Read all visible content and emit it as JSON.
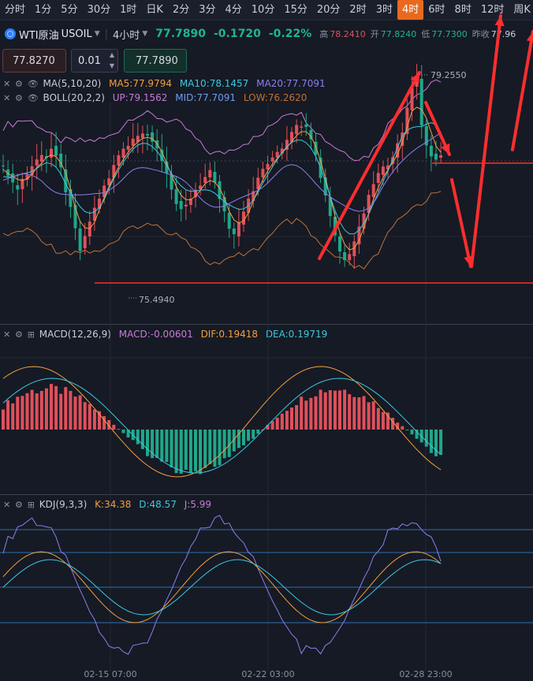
{
  "tabs": [
    "分时",
    "1分",
    "5分",
    "30分",
    "1时",
    "日K",
    "2分",
    "3分",
    "4分",
    "10分",
    "15分",
    "20分",
    "2时",
    "3时",
    "4时",
    "6时",
    "8时",
    "12时",
    "周K"
  ],
  "active_tab": "4时",
  "symbol": {
    "name": "WTI原油",
    "code": "USOIL",
    "period": "4小时",
    "price": "77.7890",
    "change": "-0.1720",
    "change_pct": "-0.22%",
    "high_label": "高",
    "high": "78.2410",
    "open_label": "开",
    "open": "77.8240",
    "low_label": "低",
    "low": "77.7300",
    "prev_label": "昨收",
    "prev": "77.96"
  },
  "order": {
    "sell_price": "77.8270",
    "quantity": "0.01",
    "buy_price": "77.7890"
  },
  "main_indicators": {
    "ma_label": "MA(5,10,20)",
    "ma5": "MA5:77.9794",
    "ma10": "MA10:78.1457",
    "ma20": "MA20:77.7091",
    "boll_label": "BOLL(20,2,2)",
    "up": "UP:79.1562",
    "mid": "MID:77.7091",
    "low": "LOW:76.2620"
  },
  "annotations": {
    "high_marker": "79.2550",
    "low_marker": "75.4940"
  },
  "macd": {
    "label": "MACD(12,26,9)",
    "macd": "MACD:-0.00601",
    "dif": "DIF:0.19418",
    "dea": "DEA:0.19719"
  },
  "kdj": {
    "label": "KDJ(9,3,3)",
    "k": "K:34.38",
    "d": "D:48.57",
    "j": "J:5.99"
  },
  "time_axis": [
    "02-15 07:00",
    "02-22 03:00",
    "02-28 23:00"
  ],
  "colors": {
    "up": "#e0505b",
    "down": "#1fa88a",
    "accent": "#e9691f",
    "ma5": "#f0a040",
    "ma10": "#3cc8e0",
    "ma20": "#8b7ff0",
    "boll_up": "#c77bd8",
    "boll_low": "#c0713a",
    "arrow": "#ff2e2e"
  },
  "icons": [
    "close-icon",
    "gear-icon",
    "eye-icon",
    "expand-icon",
    "caret-down-icon"
  ]
}
